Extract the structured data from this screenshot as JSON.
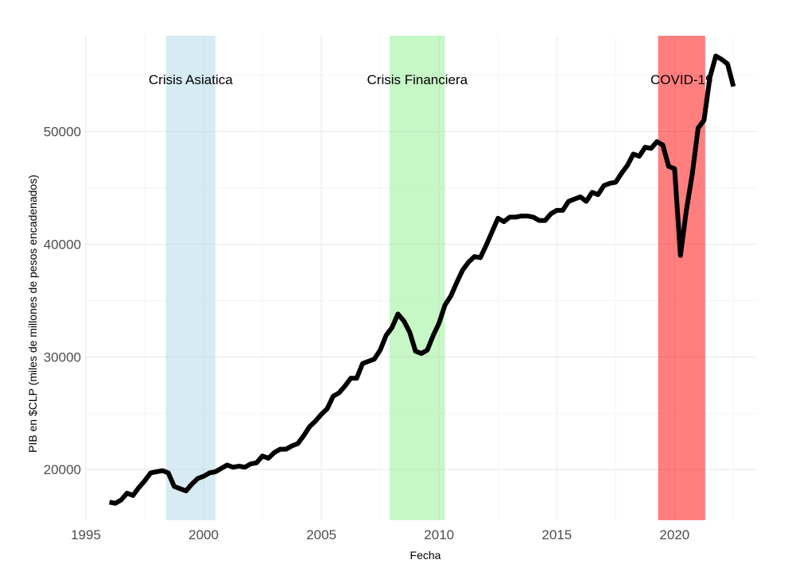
{
  "chart_data": {
    "type": "line",
    "title": "",
    "xlabel": "Fecha",
    "ylabel": "PIB en $CLP (miles de millones de pesos encadenados)",
    "xlim": [
      1995,
      2023.5
    ],
    "ylim": [
      15500,
      58500
    ],
    "x_ticks": [
      1995,
      2000,
      2005,
      2010,
      2015,
      2020
    ],
    "y_ticks": [
      20000,
      30000,
      40000,
      50000
    ],
    "x_tick_labels": [
      "1995",
      "2000",
      "2005",
      "2010",
      "2015",
      "2020"
    ],
    "y_tick_labels": [
      "20000",
      "30000",
      "40000",
      "50000"
    ],
    "grid": true,
    "legend": "none",
    "bands": [
      {
        "label": "Crisis Asiatica",
        "x_start": 1998.4,
        "x_end": 2000.5,
        "color": "#add8e6",
        "opacity": 0.5
      },
      {
        "label": "Crisis Financiera",
        "x_start": 2007.9,
        "x_end": 2010.25,
        "color": "#90ee90",
        "opacity": 0.5
      },
      {
        "label": "COVID-19",
        "x_start": 2019.3,
        "x_end": 2021.3,
        "color": "#ff0000",
        "opacity": 0.5
      }
    ],
    "series": [
      {
        "color": "#000000",
        "x": [
          1996.0,
          1996.25,
          1996.5,
          1996.75,
          1997.0,
          1997.25,
          1997.5,
          1997.75,
          1998.0,
          1998.25,
          1998.5,
          1998.75,
          1999.0,
          1999.25,
          1999.5,
          1999.75,
          2000.0,
          2000.25,
          2000.5,
          2000.75,
          2001.0,
          2001.25,
          2001.5,
          2001.75,
          2002.0,
          2002.25,
          2002.5,
          2002.75,
          2003.0,
          2003.25,
          2003.5,
          2003.75,
          2004.0,
          2004.25,
          2004.5,
          2004.75,
          2005.0,
          2005.25,
          2005.5,
          2005.75,
          2006.0,
          2006.25,
          2006.5,
          2006.75,
          2007.0,
          2007.25,
          2007.5,
          2007.75,
          2008.0,
          2008.25,
          2008.5,
          2008.75,
          2009.0,
          2009.25,
          2009.5,
          2009.75,
          2010.0,
          2010.25,
          2010.5,
          2010.75,
          2011.0,
          2011.25,
          2011.5,
          2011.75,
          2012.0,
          2012.25,
          2012.5,
          2012.75,
          2013.0,
          2013.25,
          2013.5,
          2013.75,
          2014.0,
          2014.25,
          2014.5,
          2014.75,
          2015.0,
          2015.25,
          2015.5,
          2015.75,
          2016.0,
          2016.25,
          2016.5,
          2016.75,
          2017.0,
          2017.25,
          2017.5,
          2017.75,
          2018.0,
          2018.25,
          2018.5,
          2018.75,
          2019.0,
          2019.25,
          2019.5,
          2019.75,
          2020.0,
          2020.25,
          2020.5,
          2020.75,
          2021.0,
          2021.25,
          2021.5,
          2021.75,
          2022.0,
          2022.25,
          2022.5
        ],
        "values": [
          17100,
          17000,
          17300,
          17900,
          17700,
          18400,
          19000,
          19700,
          19800,
          19900,
          19700,
          18500,
          18300,
          18100,
          18700,
          19200,
          19400,
          19700,
          19800,
          20100,
          20400,
          20200,
          20300,
          20200,
          20500,
          20600,
          21200,
          21000,
          21500,
          21800,
          21800,
          22100,
          22300,
          23000,
          23800,
          24300,
          24900,
          25400,
          26500,
          26800,
          27400,
          28100,
          28100,
          29400,
          29600,
          29800,
          30600,
          31900,
          32600,
          33800,
          33200,
          32200,
          30500,
          30300,
          30600,
          31900,
          33000,
          34600,
          35400,
          36600,
          37700,
          38400,
          38900,
          38800,
          39900,
          41100,
          42300,
          42000,
          42400,
          42400,
          42500,
          42500,
          42400,
          42100,
          42100,
          42700,
          43000,
          43000,
          43800,
          44000,
          44200,
          43800,
          44600,
          44400,
          45200,
          45400,
          45500,
          46300,
          47000,
          48000,
          47800,
          48600,
          48500,
          49100,
          48800,
          46900,
          46700,
          39000,
          43000,
          46200,
          50300,
          51000,
          54800,
          56700,
          56400,
          56000,
          54000
        ]
      }
    ]
  }
}
